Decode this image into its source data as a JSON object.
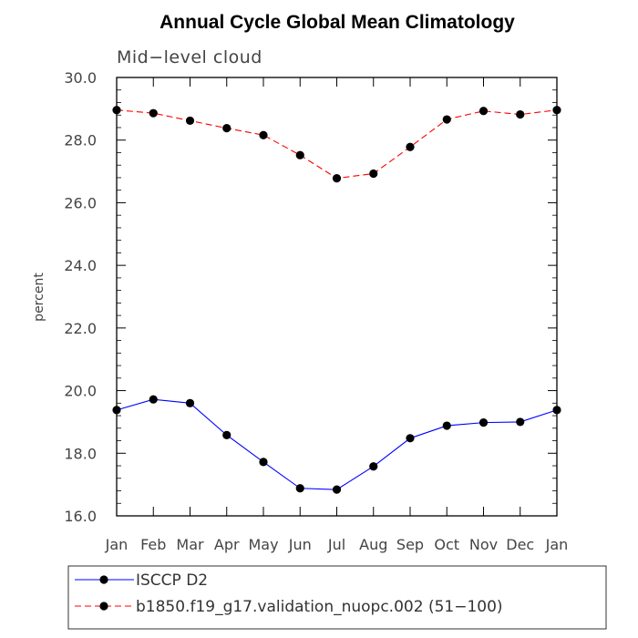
{
  "chart_data": {
    "type": "line",
    "title": "Annual Cycle Global Mean Climatology",
    "subtitle": "Mid−level cloud",
    "xlabel": "",
    "ylabel": "percent",
    "categories": [
      "Jan",
      "Feb",
      "Mar",
      "Apr",
      "May",
      "Jun",
      "Jul",
      "Aug",
      "Sep",
      "Oct",
      "Nov",
      "Dec",
      "Jan"
    ],
    "ylim": [
      16.0,
      30.0
    ],
    "yticks": [
      "16.0",
      "18.0",
      "20.0",
      "22.0",
      "24.0",
      "26.0",
      "28.0",
      "30.0"
    ],
    "grid": false,
    "legend_position": "bottom",
    "series": [
      {
        "name": "ISCCP D2",
        "color": "#0000ff",
        "line_style": "solid",
        "marker": "filled-circle",
        "values": [
          19.38,
          19.72,
          19.6,
          18.58,
          17.72,
          16.88,
          16.84,
          17.58,
          18.48,
          18.88,
          18.98,
          19.0,
          19.38
        ]
      },
      {
        "name": "b1850.f19_g17.validation_nuopc.002 (51−100)",
        "color": "#ff0000",
        "line_style": "dashed",
        "marker": "filled-circle",
        "values": [
          28.96,
          28.86,
          28.62,
          28.38,
          28.16,
          27.52,
          26.78,
          26.93,
          27.78,
          28.66,
          28.93,
          28.82,
          28.96
        ]
      }
    ]
  }
}
